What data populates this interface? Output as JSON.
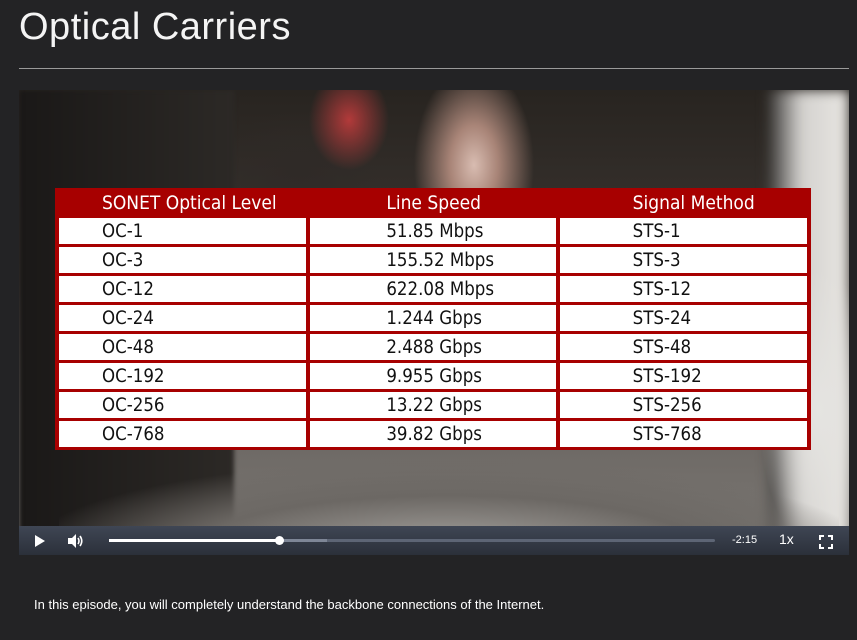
{
  "page": {
    "title": "Optical Carriers",
    "description": "In this episode, you will completely understand the backbone connections of the Internet."
  },
  "table": {
    "headers": [
      "SONET Optical Level",
      "Line Speed",
      "Signal Method"
    ],
    "rows": [
      [
        "OC-1",
        "51.85 Mbps",
        "STS-1"
      ],
      [
        "OC-3",
        "155.52 Mbps",
        "STS-3"
      ],
      [
        "OC-12",
        "622.08 Mbps",
        "STS-12"
      ],
      [
        "OC-24",
        "1.244 Gbps",
        "STS-24"
      ],
      [
        "OC-48",
        "2.488 Gbps",
        "STS-48"
      ],
      [
        "OC-192",
        "9.955 Gbps",
        "STS-192"
      ],
      [
        "OC-256",
        "13.22 Gbps",
        "STS-256"
      ],
      [
        "OC-768",
        "39.82 Gbps",
        "STS-768"
      ]
    ],
    "header_color": "#a70000"
  },
  "player": {
    "time_remaining": "-2:15",
    "playback_speed": "1x",
    "progress_fraction": 0.28,
    "buffered_fraction": 0.36,
    "play_icon": "play-icon",
    "volume_icon": "volume-icon",
    "fullscreen_icon": "fullscreen-icon"
  }
}
